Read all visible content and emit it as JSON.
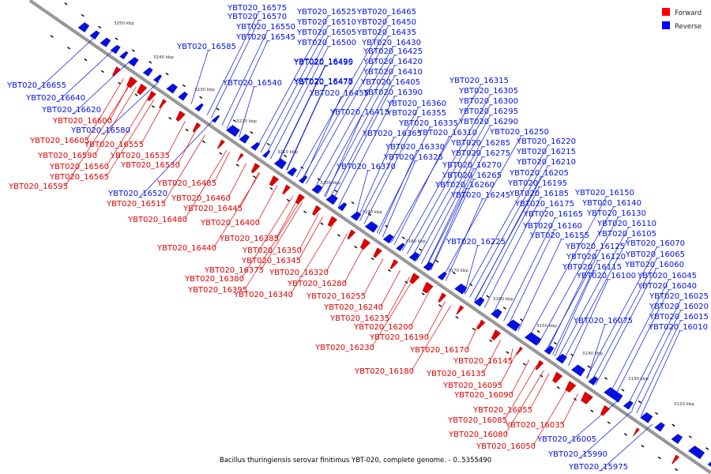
{
  "caption": "Bacillus thuringiensis serovar finitimus YBT-020, complete genome. - 0..5355490",
  "legend": [
    {
      "label": "Forward",
      "color": "#ff0000"
    },
    {
      "label": "Reverse",
      "color": "#0000ff"
    }
  ],
  "colors": {
    "forward": "#e00000",
    "reverse": "#0010e0",
    "axis": "#999999"
  },
  "ticks": [
    "3250 kbp",
    "3240 kbp",
    "3230 kbp",
    "3220 kbp",
    "3210 kbp",
    "3200 kbp",
    "3190 kbp",
    "3180 kbp",
    "3170 kbp",
    "3160 kbp",
    "3150 kbp",
    "3140 kbp",
    "3130 kbp",
    "3120 kbp"
  ],
  "reverse_genes": [
    "YBT020_16575",
    "YBT020_16570",
    "YBT020_16550",
    "YBT020_16545",
    "YBT020_16585",
    "YBT020_16525",
    "YBT020_16510",
    "YBT020_16505",
    "YBT020_16500",
    "YBT020_16495",
    "YBT020_16490",
    "YBT020_16475",
    "YBT020_16470",
    "YBT020_16455",
    "YBT020_16540",
    "YBT020_16465",
    "YBT020_16450",
    "YBT020_16435",
    "YBT020_16430",
    "YBT020_16425",
    "YBT020_16420",
    "YBT020_16410",
    "YBT020_16405",
    "YBT020_16390",
    "YBT020_16415",
    "YBT020_16360",
    "YBT020_16355",
    "YBT020_16335",
    "YBT020_16365",
    "YBT020_16330",
    "YBT020_16325",
    "YBT020_16370",
    "YBT020_16315",
    "YBT020_16305",
    "YBT020_16300",
    "YBT020_16295",
    "YBT020_16290",
    "YBT020_16310",
    "YBT020_16285",
    "YBT020_16275",
    "YBT020_16270",
    "YBT020_16265",
    "YBT020_16260",
    "YBT020_16245",
    "YBT020_16250",
    "YBT020_16220",
    "YBT020_16215",
    "YBT020_16210",
    "YBT020_16205",
    "YBT020_16195",
    "YBT020_16185",
    "YBT020_16175",
    "YBT020_16165",
    "YBT020_16160",
    "YBT020_16155",
    "YBT020_16225",
    "YBT020_16150",
    "YBT020_16140",
    "YBT020_16130",
    "YBT020_16110",
    "YBT020_16105",
    "YBT020_16125",
    "YBT020_16120",
    "YBT020_16115",
    "YBT020_16100",
    "YBT020_16070",
    "YBT020_16065",
    "YBT020_16060",
    "YBT020_16045",
    "YBT020_16040",
    "YBT020_16025",
    "YBT020_16020",
    "YBT020_16015",
    "YBT020_16010",
    "YBT020_16075",
    "YBT020_16005",
    "YBT020_15990",
    "YBT020_15975",
    "YBT020_16655",
    "YBT020_16640",
    "YBT020_16620",
    "YBT020_16580",
    "YBT020_16520"
  ],
  "forward_genes": [
    "YBT020_16600",
    "YBT020_16605",
    "YBT020_16555",
    "YBT020_16590",
    "YBT020_16535",
    "YBT020_16560",
    "YBT020_16530",
    "YBT020_16565",
    "YBT020_16595",
    "YBT020_16485",
    "YBT020_16515",
    "YBT020_16460",
    "YBT020_16445",
    "YBT020_16480",
    "YBT020_16400",
    "YBT020_16385",
    "YBT020_16440",
    "YBT020_16350",
    "YBT020_16345",
    "YBT020_16375",
    "YBT020_16320",
    "YBT020_16380",
    "YBT020_16395",
    "YBT020_16280",
    "YBT020_16340",
    "YBT020_16255",
    "YBT020_16240",
    "YBT020_16235",
    "YBT020_16200",
    "YBT020_16190",
    "YBT020_16230",
    "YBT020_16170",
    "YBT020_16180",
    "YBT020_16145",
    "YBT020_16135",
    "YBT020_16095",
    "YBT020_16090",
    "YBT020_16055",
    "YBT020_16085",
    "YBT020_16035",
    "YBT020_16080",
    "YBT020_16050"
  ]
}
